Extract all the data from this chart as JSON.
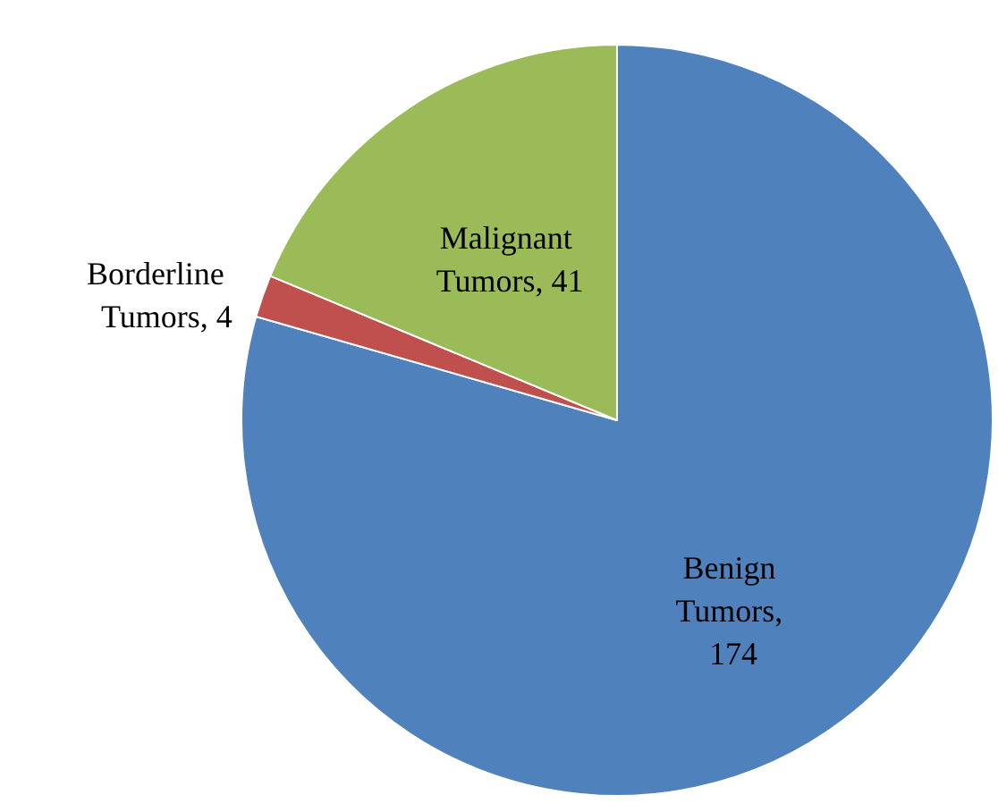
{
  "chart_data": {
    "type": "pie",
    "categories": [
      null,
      null,
      null
    ],
    "values": [
      174,
      4,
      41
    ],
    "colors": [
      "#4f81bd",
      "#c0504d",
      "#9bbb59"
    ],
    "value_labels": [
      "Benign Tumors, 174",
      "Borderline Tumors, 4",
      "Malignant Tumors, 41"
    ]
  }
}
